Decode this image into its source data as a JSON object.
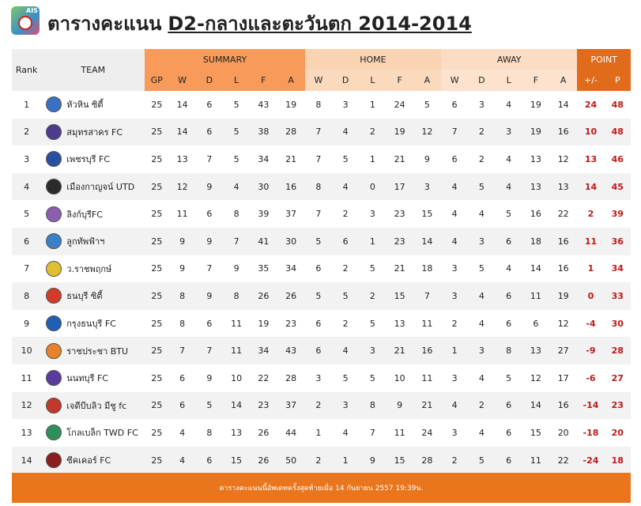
{
  "header": {
    "title": "ตารางคะแนน",
    "subtitle": "D2-กลางและตะวันตก 2014-2014",
    "logo_text": "AIS"
  },
  "columns": {
    "rank": "Rank",
    "team": "TEAM",
    "summary": "SUMMARY",
    "home": "HOME",
    "away": "AWAY",
    "point": "POINT",
    "summary_sub": [
      "GP",
      "W",
      "D",
      "L",
      "F",
      "A"
    ],
    "home_sub": [
      "W",
      "D",
      "L",
      "F",
      "A"
    ],
    "away_sub": [
      "W",
      "D",
      "L",
      "F",
      "A"
    ],
    "point_sub": [
      "+/-",
      "P"
    ]
  },
  "rows": [
    {
      "rank": "1",
      "team": "หัวหิน ซิตี้",
      "badge": "#3a6fc4",
      "gp": "25",
      "w": "14",
      "d": "6",
      "l": "5",
      "f": "43",
      "a": "19",
      "hw": "8",
      "hd": "3",
      "hl": "1",
      "hf": "24",
      "ha": "5",
      "aw": "6",
      "ad": "3",
      "al": "4",
      "af": "19",
      "aa": "14",
      "gd": "24",
      "p": "48"
    },
    {
      "rank": "2",
      "team": "สมุทรสาคร FC",
      "badge": "#4b3c8c",
      "gp": "25",
      "w": "14",
      "d": "6",
      "l": "5",
      "f": "38",
      "a": "28",
      "hw": "7",
      "hd": "4",
      "hl": "2",
      "hf": "19",
      "ha": "12",
      "aw": "7",
      "ad": "2",
      "al": "3",
      "af": "19",
      "aa": "16",
      "gd": "10",
      "p": "48"
    },
    {
      "rank": "3",
      "team": "เพชรบุรี FC",
      "badge": "#2a4f9e",
      "gp": "25",
      "w": "13",
      "d": "7",
      "l": "5",
      "f": "34",
      "a": "21",
      "hw": "7",
      "hd": "5",
      "hl": "1",
      "hf": "21",
      "ha": "9",
      "aw": "6",
      "ad": "2",
      "al": "4",
      "af": "13",
      "aa": "12",
      "gd": "13",
      "p": "46"
    },
    {
      "rank": "4",
      "team": "เมืองกาญจน์ UTD",
      "badge": "#2b2b2b",
      "gp": "25",
      "w": "12",
      "d": "9",
      "l": "4",
      "f": "30",
      "a": "16",
      "hw": "8",
      "hd": "4",
      "hl": "0",
      "hf": "17",
      "ha": "3",
      "aw": "4",
      "ad": "5",
      "al": "4",
      "af": "13",
      "aa": "13",
      "gd": "14",
      "p": "45"
    },
    {
      "rank": "5",
      "team": "ลิงก์บุรีFC",
      "badge": "#8a5fb0",
      "gp": "25",
      "w": "11",
      "d": "6",
      "l": "8",
      "f": "39",
      "a": "37",
      "hw": "7",
      "hd": "2",
      "hl": "3",
      "hf": "23",
      "ha": "15",
      "aw": "4",
      "ad": "4",
      "al": "5",
      "af": "16",
      "aa": "22",
      "gd": "2",
      "p": "39"
    },
    {
      "rank": "6",
      "team": "ลูกทัพฟ้าฯ",
      "badge": "#3a80c8",
      "gp": "25",
      "w": "9",
      "d": "9",
      "l": "7",
      "f": "41",
      "a": "30",
      "hw": "5",
      "hd": "6",
      "hl": "1",
      "hf": "23",
      "ha": "14",
      "aw": "4",
      "ad": "3",
      "al": "6",
      "af": "18",
      "aa": "16",
      "gd": "11",
      "p": "36"
    },
    {
      "rank": "7",
      "team": "ว.ราชพฤกษ์",
      "badge": "#e0c030",
      "gp": "25",
      "w": "9",
      "d": "7",
      "l": "9",
      "f": "35",
      "a": "34",
      "hw": "6",
      "hd": "2",
      "hl": "5",
      "hf": "21",
      "ha": "18",
      "aw": "3",
      "ad": "5",
      "al": "4",
      "af": "14",
      "aa": "16",
      "gd": "1",
      "p": "34"
    },
    {
      "rank": "8",
      "team": "ธนบุรี ซิตี้",
      "badge": "#d23a2a",
      "gp": "25",
      "w": "8",
      "d": "9",
      "l": "8",
      "f": "26",
      "a": "26",
      "hw": "5",
      "hd": "5",
      "hl": "2",
      "hf": "15",
      "ha": "7",
      "aw": "3",
      "ad": "4",
      "al": "6",
      "af": "11",
      "aa": "19",
      "gd": "0",
      "p": "33"
    },
    {
      "rank": "9",
      "team": "กรุงธนบุรี FC",
      "badge": "#1e5fb4",
      "gp": "25",
      "w": "8",
      "d": "6",
      "l": "11",
      "f": "19",
      "a": "23",
      "hw": "6",
      "hd": "2",
      "hl": "5",
      "hf": "13",
      "ha": "11",
      "aw": "2",
      "ad": "4",
      "al": "6",
      "af": "6",
      "aa": "12",
      "gd": "-4",
      "p": "30"
    },
    {
      "rank": "10",
      "team": "ราชประชา BTU",
      "badge": "#e8822a",
      "gp": "25",
      "w": "7",
      "d": "7",
      "l": "11",
      "f": "34",
      "a": "43",
      "hw": "6",
      "hd": "4",
      "hl": "3",
      "hf": "21",
      "ha": "16",
      "aw": "1",
      "ad": "3",
      "al": "8",
      "af": "13",
      "aa": "27",
      "gd": "-9",
      "p": "28"
    },
    {
      "rank": "11",
      "team": "นนทบุรี FC",
      "badge": "#5a3a9a",
      "gp": "25",
      "w": "6",
      "d": "9",
      "l": "10",
      "f": "22",
      "a": "28",
      "hw": "3",
      "hd": "5",
      "hl": "5",
      "hf": "10",
      "ha": "11",
      "aw": "3",
      "ad": "4",
      "al": "5",
      "af": "12",
      "aa": "17",
      "gd": "-6",
      "p": "27"
    },
    {
      "rank": "12",
      "team": "เจดีบีบลิว มีชู fc",
      "badge": "#c0392b",
      "gp": "25",
      "w": "6",
      "d": "5",
      "l": "14",
      "f": "23",
      "a": "37",
      "hw": "2",
      "hd": "3",
      "hl": "8",
      "hf": "9",
      "ha": "21",
      "aw": "4",
      "ad": "2",
      "al": "6",
      "af": "14",
      "aa": "16",
      "gd": "-14",
      "p": "23"
    },
    {
      "rank": "13",
      "team": "โกลเบล็ก TWD FC",
      "badge": "#2f8f5a",
      "gp": "25",
      "w": "4",
      "d": "8",
      "l": "13",
      "f": "26",
      "a": "44",
      "hw": "1",
      "hd": "4",
      "hl": "7",
      "hf": "11",
      "ha": "24",
      "aw": "3",
      "ad": "4",
      "al": "6",
      "af": "15",
      "aa": "20",
      "gd": "-18",
      "p": "20"
    },
    {
      "rank": "14",
      "team": "ซีคเคอร์ FC",
      "badge": "#8b1e1e",
      "gp": "25",
      "w": "4",
      "d": "6",
      "l": "15",
      "f": "26",
      "a": "50",
      "hw": "2",
      "hd": "1",
      "hl": "9",
      "hf": "15",
      "ha": "28",
      "aw": "2",
      "ad": "5",
      "al": "6",
      "af": "11",
      "aa": "22",
      "gd": "-24",
      "p": "18"
    }
  ],
  "footer": "ตารางคะแนนนี้อัพเดทครั้งสุดท้ายเมื่อ 14 กันยายน 2557 19:39น."
}
